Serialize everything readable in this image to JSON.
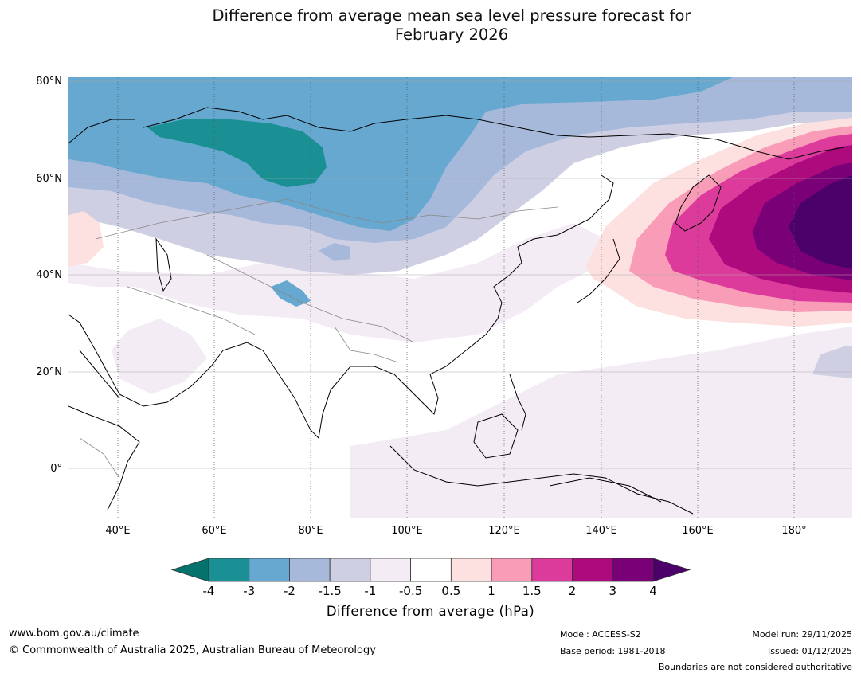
{
  "title": {
    "line1": "Difference from average mean sea level pressure forecast for",
    "line2": "February 2026"
  },
  "axes": {
    "latitudes": [
      "80°N",
      "60°N",
      "40°N",
      "20°N",
      "0°"
    ],
    "longitudes": [
      "40°E",
      "60°E",
      "80°E",
      "100°E",
      "120°E",
      "140°E",
      "160°E",
      "180°"
    ]
  },
  "colorbar": {
    "ticks": [
      "-4",
      "-3",
      "-2",
      "-1.5",
      "-1",
      "-0.5",
      "0.5",
      "1",
      "1.5",
      "2",
      "3",
      "4"
    ],
    "colors": [
      "#05726b",
      "#1a8f94",
      "#66a8d0",
      "#a6b9da",
      "#cfcfe4",
      "#f3ecf5",
      "#ffffff",
      "#fde0e0",
      "#f99cb7",
      "#dc3b9c",
      "#ad0a7e",
      "#7a0077",
      "#4b006a"
    ],
    "label": "Difference from average (hPa)"
  },
  "map": {
    "region": "Asia and western Pacific",
    "anomaly_centre": "North Pacific high anomaly, > 4 hPa",
    "low_centre": "Western Siberia low anomaly, < -3 hPa"
  },
  "footer": {
    "website": "www.bom.gov.au/climate",
    "copyright": "© Commonwealth of Australia 2025, Australian Bureau of Meteorology",
    "model": "Model: ACCESS-S2",
    "base_period": "Base period: 1981-2018",
    "model_run": "Model run: 29/11/2025",
    "issued": "Issued: 01/12/2025",
    "disclaimer": "Boundaries are not considered authoritative"
  }
}
